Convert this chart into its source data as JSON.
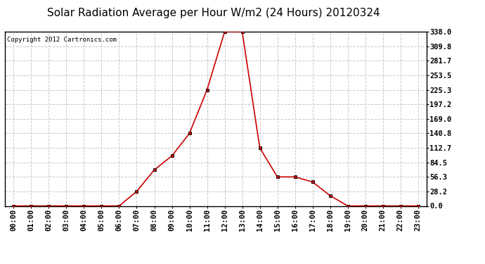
{
  "title": "Solar Radiation Average per Hour W/m2 (24 Hours) 20120324",
  "copyright": "Copyright 2012 Cartronics.com",
  "hours": [
    "00:00",
    "01:00",
    "02:00",
    "03:00",
    "04:00",
    "05:00",
    "06:00",
    "07:00",
    "08:00",
    "09:00",
    "10:00",
    "11:00",
    "12:00",
    "13:00",
    "14:00",
    "15:00",
    "16:00",
    "17:00",
    "18:00",
    "19:00",
    "20:00",
    "21:00",
    "22:00",
    "23:00"
  ],
  "values": [
    0.0,
    0.0,
    0.0,
    0.0,
    0.0,
    0.0,
    0.0,
    28.2,
    70.0,
    97.0,
    140.8,
    225.3,
    338.0,
    338.0,
    112.7,
    56.3,
    56.3,
    46.5,
    20.0,
    0.0,
    0.0,
    0.0,
    0.0,
    0.0
  ],
  "ylim": [
    0.0,
    338.0
  ],
  "yticks": [
    0.0,
    28.2,
    56.3,
    84.5,
    112.7,
    140.8,
    169.0,
    197.2,
    225.3,
    253.5,
    281.7,
    309.8,
    338.0
  ],
  "line_color": "#cc0000",
  "marker": "s",
  "marker_color": "#000000",
  "marker_size": 3,
  "background_color": "#ffffff",
  "grid_color": "#c8c8c8",
  "title_fontsize": 11,
  "tick_fontsize": 7.5,
  "copyright_fontsize": 6.5
}
